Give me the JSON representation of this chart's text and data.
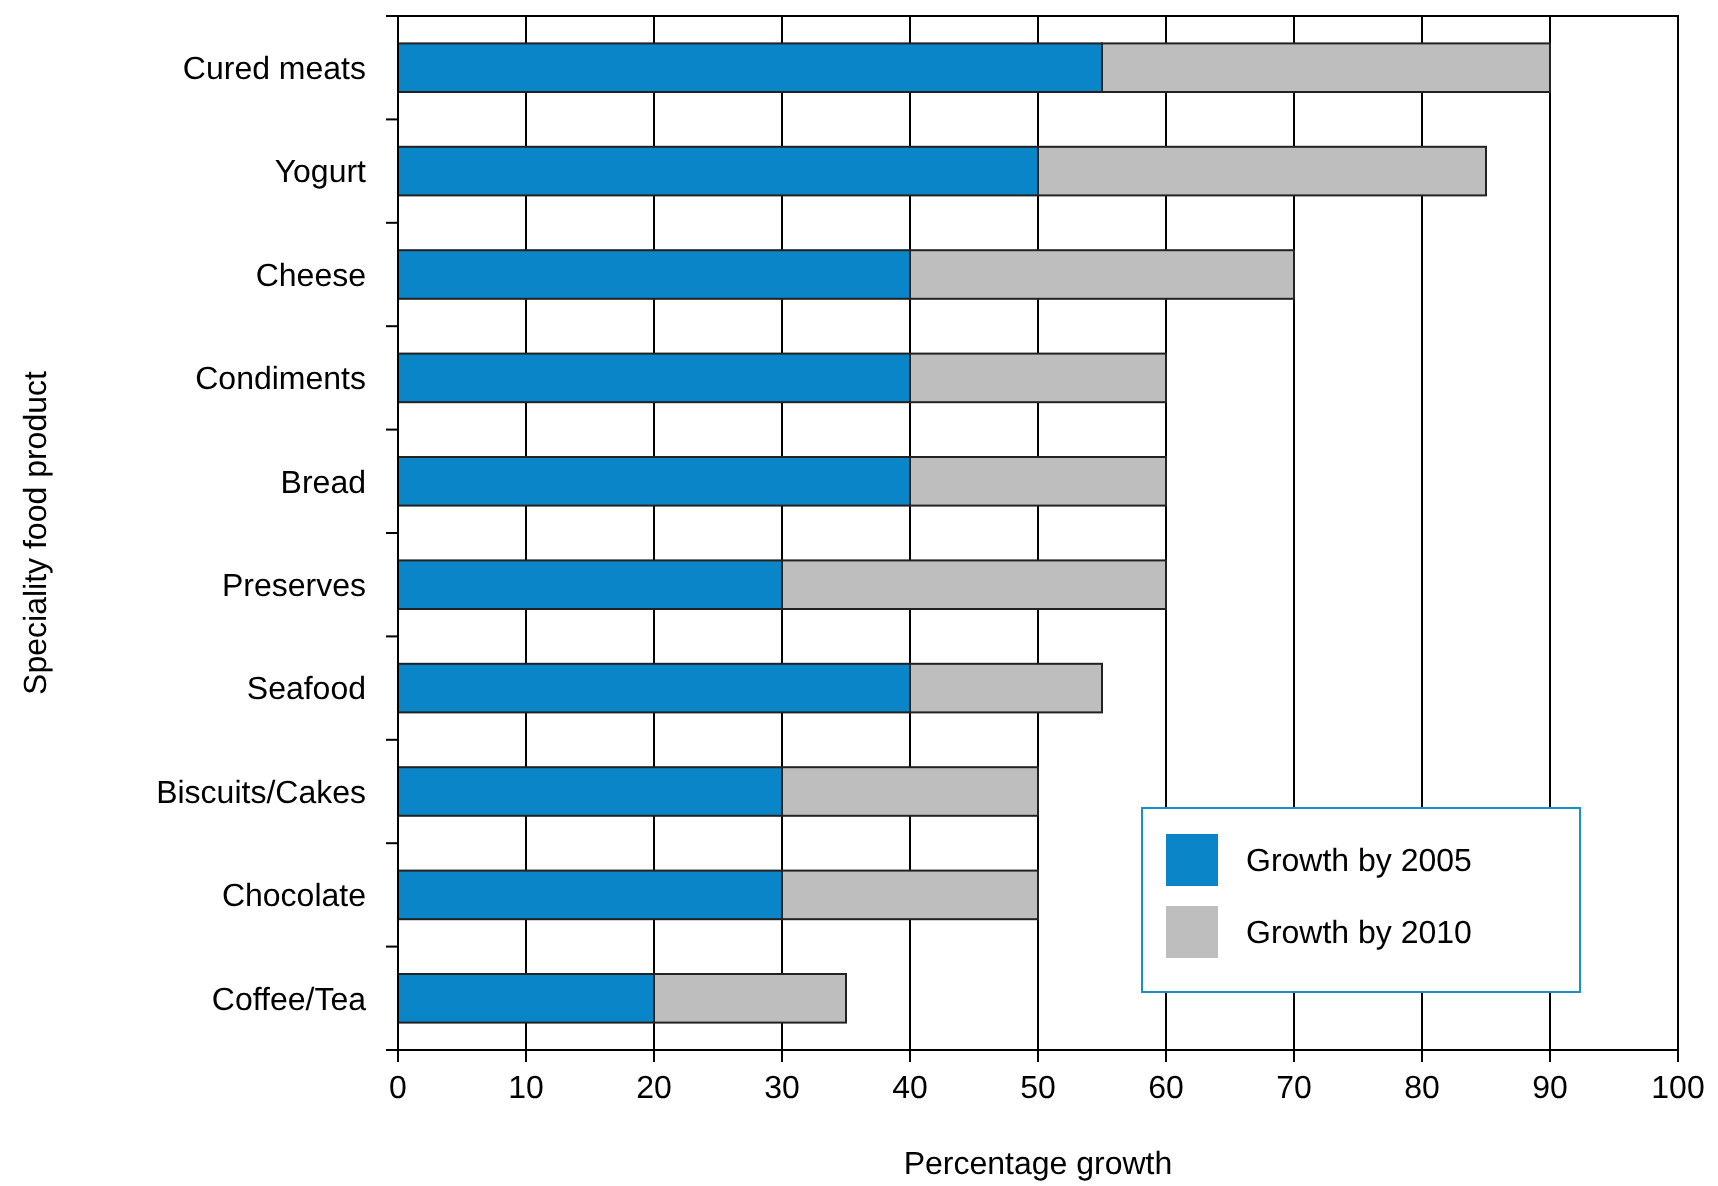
{
  "chart_data": {
    "type": "bar",
    "orientation": "horizontal",
    "stacked": true,
    "xlabel": "Percentage growth",
    "ylabel": "Speciality food product",
    "categories": [
      "Cured meats",
      "Yogurt",
      "Cheese",
      "Condiments",
      "Bread",
      "Preserves",
      "Seafood",
      "Biscuits/Cakes",
      "Chocolate",
      "Coffee/Tea"
    ],
    "series": [
      {
        "name": "Growth by 2005",
        "color": "#0a85c7",
        "values": [
          55,
          50,
          40,
          40,
          40,
          30,
          40,
          30,
          30,
          20
        ]
      },
      {
        "name": "Growth by 2010",
        "color": "#bebebe",
        "values": [
          35,
          35,
          30,
          20,
          20,
          30,
          15,
          20,
          20,
          15
        ]
      }
    ],
    "xlim": [
      0,
      100
    ],
    "xticks": [
      0,
      10,
      20,
      30,
      40,
      50,
      60,
      70,
      80,
      90,
      100
    ],
    "grid": "x",
    "legend": "bottom right"
  }
}
